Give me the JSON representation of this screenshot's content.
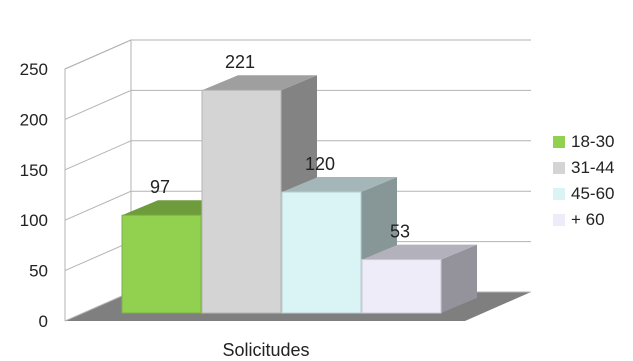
{
  "chart_data": {
    "type": "bar",
    "render": "3d",
    "title": "",
    "xlabel": "Solicitudes",
    "ylabel": "",
    "ylim": [
      0,
      250
    ],
    "yticks": [
      0,
      50,
      100,
      150,
      200,
      250
    ],
    "grid": true,
    "legend_position": "right",
    "series": [
      {
        "name": "18-30",
        "value": 97,
        "color": "#92d050"
      },
      {
        "name": "31-44",
        "value": 221,
        "color": "#d4d4d4"
      },
      {
        "name": "45-60",
        "value": 120,
        "color": "#daf3f5"
      },
      {
        "name": "+ 60",
        "value": 53,
        "color": "#efecfa"
      }
    ]
  }
}
